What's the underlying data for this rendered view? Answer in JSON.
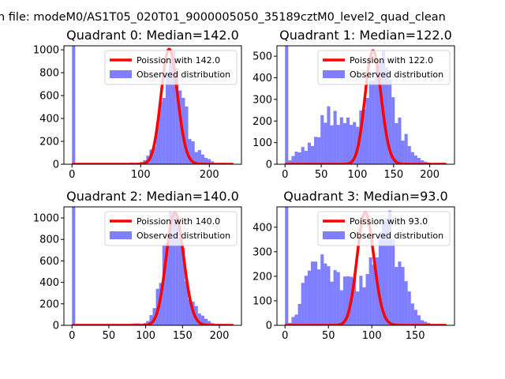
{
  "figure_title": "n file: modeM0/AS1T05_020T01_9000005050_35189cztM0_level2_quad_clean",
  "colors": {
    "poisson": "#ff0000",
    "observed": "#0000ff",
    "observed_alpha": 0.5
  },
  "chart_data": [
    {
      "type": "bar",
      "title": "Quadrant 0: Median=142.0",
      "legend": [
        "Poission with 142.0",
        "Observed distribution"
      ],
      "legend_placement": "upper-right",
      "bin_start": 0,
      "bin_width": 4.7,
      "values": [
        1100,
        0,
        0,
        0,
        0,
        0,
        0,
        0,
        0,
        0,
        0,
        0,
        0,
        0,
        0,
        0,
        0,
        8,
        15,
        12,
        15,
        20,
        35,
        75,
        128,
        155,
        355,
        545,
        580,
        800,
        890,
        990,
        840,
        645,
        580,
        505,
        220,
        200,
        107,
        124,
        85,
        55,
        45,
        25,
        8,
        3,
        2,
        1,
        0,
        1
      ],
      "poisson": {
        "lambda": 142.0,
        "peak": 1005,
        "x_max": 235
      },
      "xlim": [
        -11.75,
        246.75
      ],
      "ylim": [
        0,
        1035
      ],
      "xticks": [
        0,
        100,
        200
      ],
      "yticks": [
        0,
        200,
        400,
        600,
        800,
        1000
      ]
    },
    {
      "type": "bar",
      "title": "Quadrant 1: Median=122.0",
      "legend": [
        "Poission with 122.0",
        "Observed distribution"
      ],
      "legend_placement": "upper-right",
      "bin_start": 0,
      "bin_width": 4.46,
      "values": [
        600,
        18,
        38,
        58,
        55,
        80,
        62,
        100,
        84,
        127,
        125,
        227,
        192,
        268,
        180,
        247,
        182,
        217,
        190,
        216,
        182,
        195,
        173,
        249,
        255,
        307,
        388,
        386,
        464,
        480,
        524,
        448,
        393,
        310,
        190,
        216,
        109,
        140,
        84,
        56,
        40,
        29,
        18,
        12,
        8,
        3,
        2,
        1,
        1,
        0
      ],
      "poisson": {
        "lambda": 122.0,
        "peak": 525,
        "x_max": 223
      },
      "xlim": [
        -11.15,
        234.15
      ],
      "ylim": [
        0,
        548
      ],
      "xticks": [
        0,
        50,
        100,
        150,
        200
      ],
      "yticks": [
        0,
        100,
        200,
        300,
        400,
        500
      ]
    },
    {
      "type": "bar",
      "title": "Quadrant 2: Median=140.0",
      "legend": [
        "Poission with 140.0",
        "Observed distribution"
      ],
      "legend_placement": "upper-right",
      "bin_start": 0,
      "bin_width": 4.38,
      "values": [
        1200,
        0,
        0,
        0,
        0,
        0,
        0,
        0,
        0,
        0,
        0,
        0,
        0,
        0,
        0,
        0,
        3,
        8,
        15,
        18,
        18,
        14,
        20,
        40,
        95,
        160,
        340,
        395,
        750,
        760,
        1060,
        1030,
        1020,
        820,
        720,
        410,
        240,
        220,
        180,
        110,
        90,
        60,
        40,
        20,
        5,
        3,
        2,
        1,
        1,
        1
      ],
      "poisson": {
        "lambda": 140.0,
        "peak": 1050,
        "x_max": 219
      },
      "xlim": [
        -10.95,
        229.95
      ],
      "ylim": [
        0,
        1103
      ],
      "xticks": [
        0,
        50,
        100,
        150,
        200
      ],
      "yticks": [
        0,
        200,
        400,
        600,
        800,
        1000
      ]
    },
    {
      "type": "bar",
      "title": "Quadrant 3: Median=93.0",
      "legend": [
        "Poission with 93.0",
        "Observed distribution"
      ],
      "legend_placement": "upper-right",
      "bin_start": 0,
      "bin_width": 3.72,
      "values": [
        520,
        10,
        34,
        44,
        87,
        173,
        202,
        223,
        260,
        260,
        228,
        289,
        252,
        241,
        178,
        225,
        217,
        143,
        199,
        200,
        198,
        192,
        138,
        202,
        155,
        209,
        277,
        247,
        277,
        379,
        427,
        437,
        468,
        350,
        238,
        260,
        238,
        180,
        138,
        89,
        63,
        41,
        21,
        15,
        10,
        4,
        2,
        1,
        0,
        1
      ],
      "poisson": {
        "lambda": 93.0,
        "peak": 460,
        "x_max": 186
      },
      "xlim": [
        -9.3,
        195.3
      ],
      "ylim": [
        0,
        483
      ],
      "xticks": [
        0,
        50,
        100,
        150
      ],
      "yticks": [
        0,
        100,
        200,
        300,
        400
      ]
    }
  ]
}
